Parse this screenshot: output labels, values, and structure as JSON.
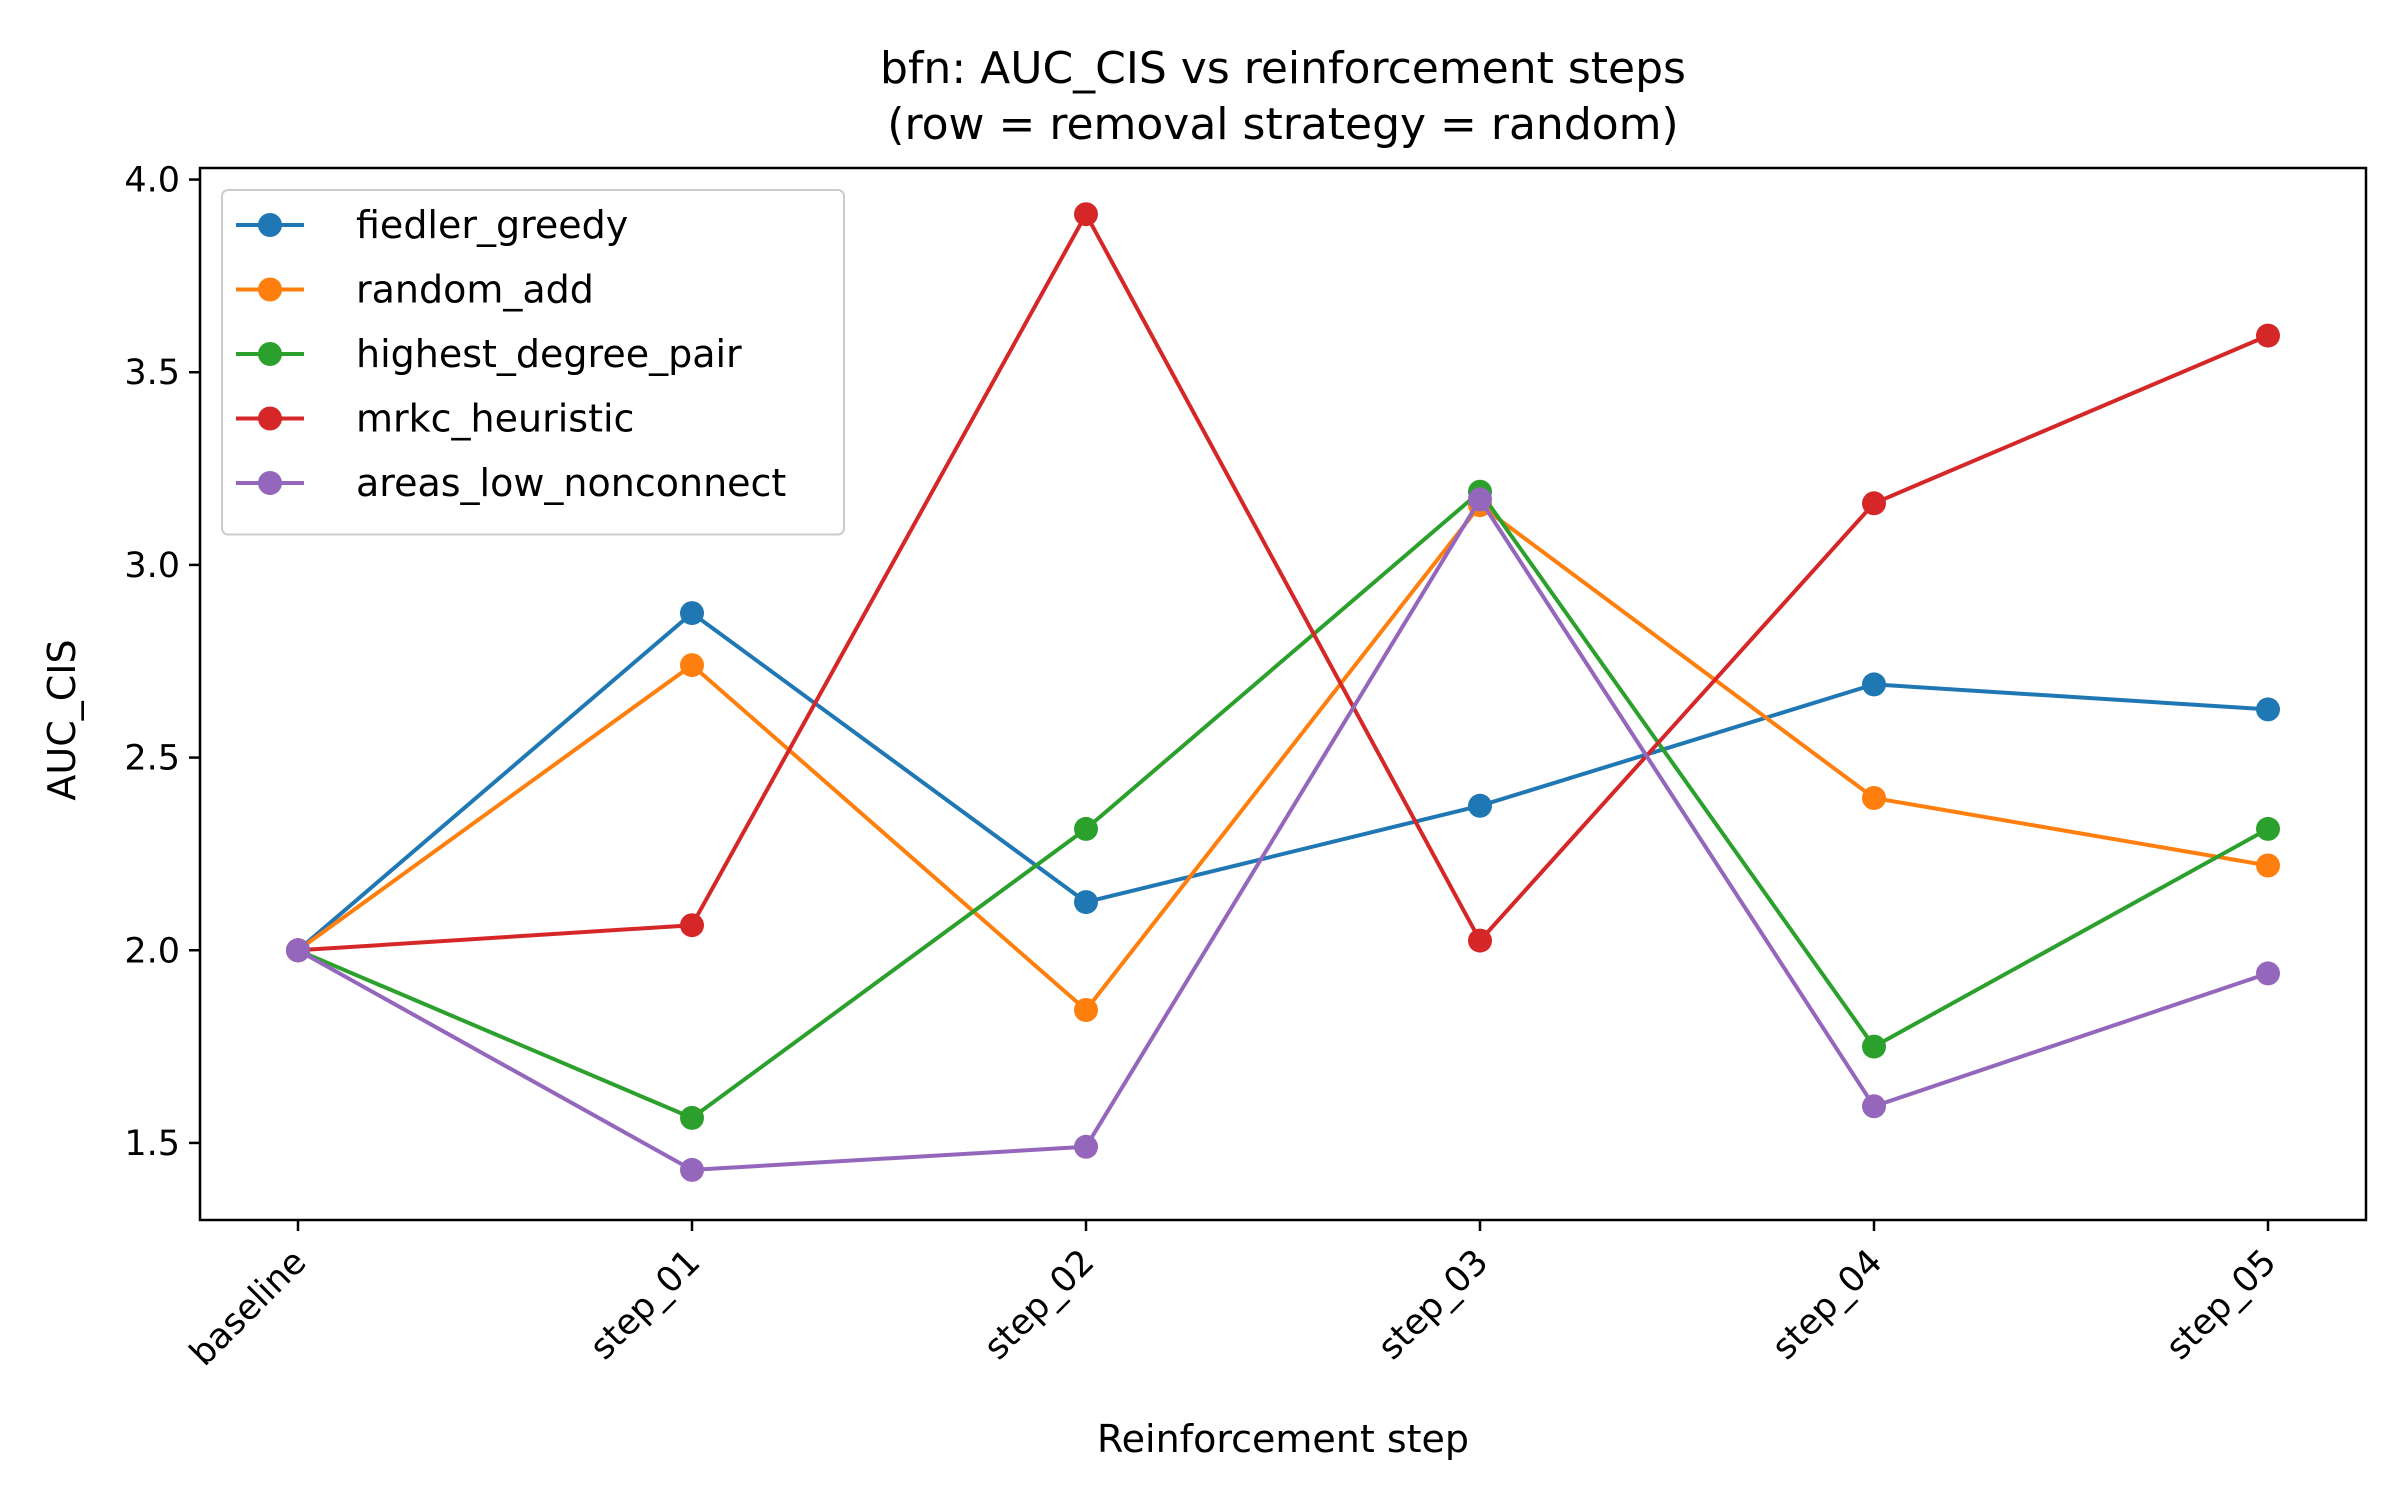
{
  "chart_data": {
    "type": "line",
    "title": "bfn: AUC_CIS vs reinforcement steps",
    "subtitle": "(row = removal strategy = random)",
    "xlabel": "Reinforcement step",
    "ylabel": "AUC_CIS",
    "categories": [
      "baseline",
      "step_01",
      "step_02",
      "step_03",
      "step_04",
      "step_05"
    ],
    "ylim": [
      1.3,
      4.03
    ],
    "yticks": [
      "1.5",
      "2.0",
      "2.5",
      "3.0",
      "3.5",
      "4.0"
    ],
    "grid": false,
    "legend_position": "upper-left",
    "series": [
      {
        "name": "fiedler_greedy",
        "color": "#1f77b4",
        "values": [
          2.0,
          2.875,
          2.125,
          2.375,
          2.69,
          2.625
        ]
      },
      {
        "name": "random_add",
        "color": "#ff7f0e",
        "values": [
          2.0,
          2.74,
          1.845,
          3.155,
          2.395,
          2.22
        ]
      },
      {
        "name": "highest_degree_pair",
        "color": "#2ca02c",
        "values": [
          2.0,
          1.565,
          2.315,
          3.19,
          1.75,
          2.315
        ]
      },
      {
        "name": "mrkc_heuristic",
        "color": "#d62728",
        "values": [
          2.0,
          2.065,
          3.91,
          2.025,
          3.16,
          3.595
        ]
      },
      {
        "name": "areas_low_nonconnect",
        "color": "#9467bd",
        "values": [
          2.0,
          1.43,
          1.49,
          3.17,
          1.595,
          1.94
        ]
      }
    ]
  }
}
